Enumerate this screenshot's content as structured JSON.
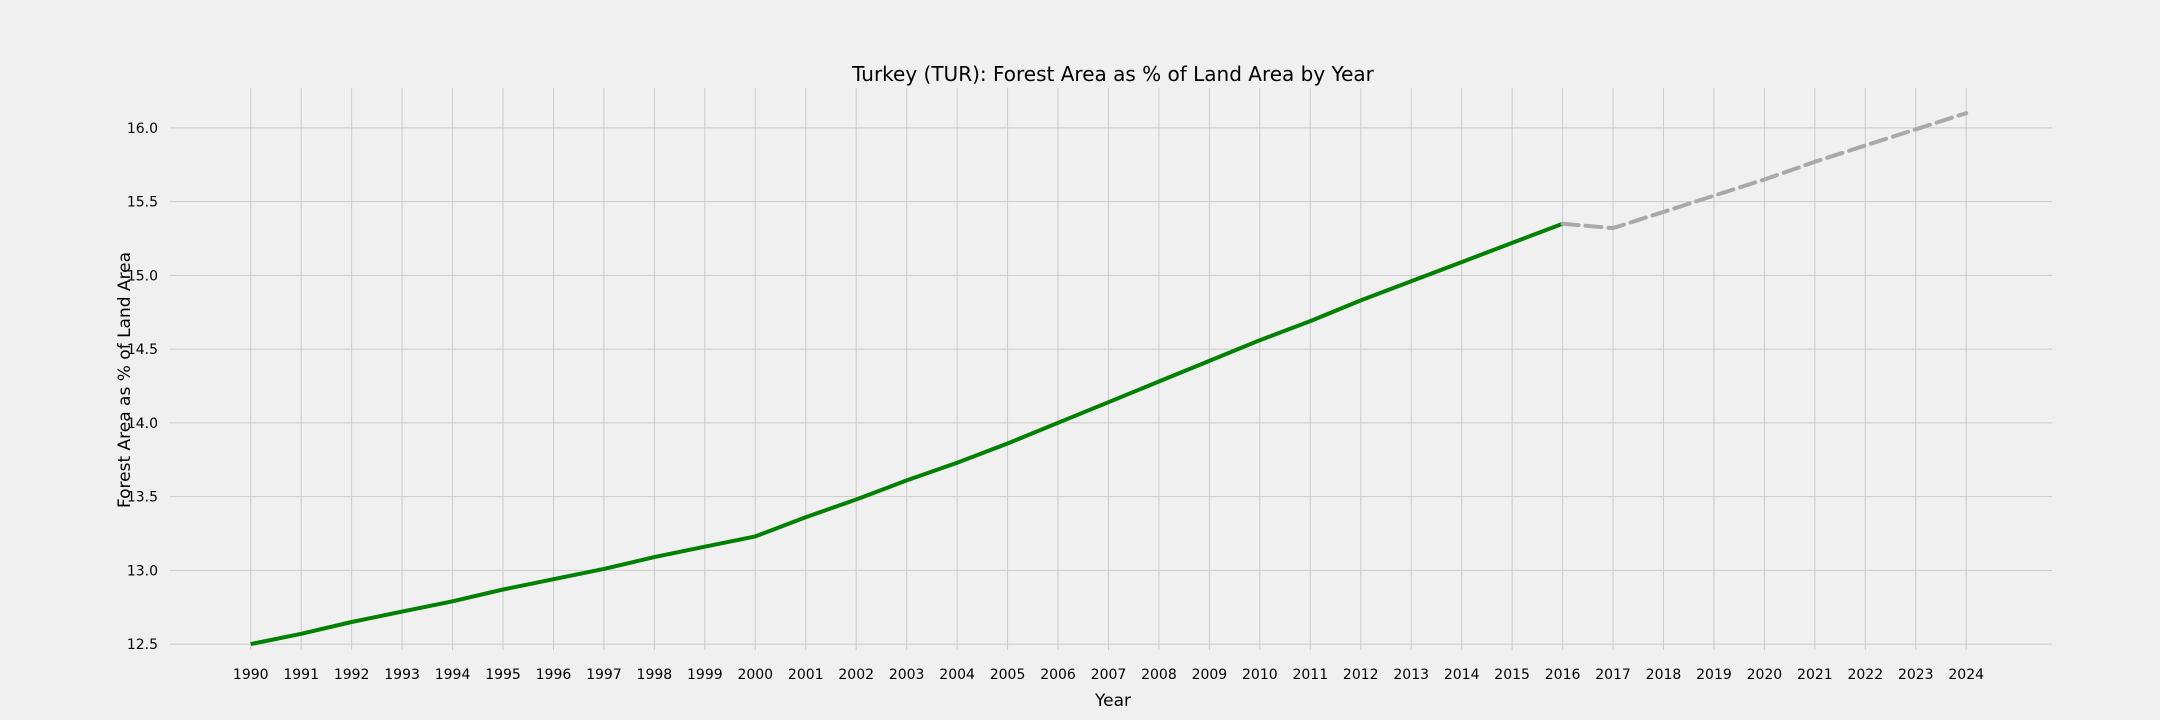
{
  "chart_data": {
    "type": "line",
    "title": "Turkey (TUR): Forest Area as % of Land Area by Year",
    "xlabel": "Year",
    "ylabel": "Forest Area as % of Land Area",
    "x_ticks": [
      "1990",
      "1991",
      "1992",
      "1993",
      "1994",
      "1995",
      "1996",
      "1997",
      "1998",
      "1999",
      "2000",
      "2001",
      "2002",
      "2003",
      "2004",
      "2005",
      "2006",
      "2007",
      "2008",
      "2009",
      "2010",
      "2011",
      "2012",
      "2013",
      "2014",
      "2015",
      "2016",
      "2017",
      "2018",
      "2019",
      "2020",
      "2021",
      "2022",
      "2023",
      "2024"
    ],
    "y_ticks": [
      "12.5",
      "13.0",
      "13.5",
      "14.0",
      "14.5",
      "15.0",
      "15.5",
      "16.0"
    ],
    "xlim": [
      1988.4,
      2025.7
    ],
    "ylim": [
      12.46,
      16.27
    ],
    "grid": true,
    "legend": "none",
    "series": [
      {
        "style": "solid",
        "color": "#008000",
        "x": [
          1990,
          1991,
          1992,
          1993,
          1994,
          1995,
          1996,
          1997,
          1998,
          1999,
          2000,
          2001,
          2002,
          2003,
          2004,
          2005,
          2006,
          2007,
          2008,
          2009,
          2010,
          2011,
          2012,
          2013,
          2014,
          2015,
          2016
        ],
        "y": [
          12.5,
          12.57,
          12.65,
          12.72,
          12.79,
          12.87,
          12.94,
          13.01,
          13.09,
          13.16,
          13.23,
          13.36,
          13.48,
          13.61,
          13.73,
          13.86,
          14.0,
          14.14,
          14.28,
          14.42,
          14.56,
          14.69,
          14.83,
          14.96,
          15.09,
          15.22,
          15.35
        ]
      },
      {
        "style": "dashed",
        "color": "#a9a9a9",
        "x": [
          2016,
          2017,
          2018,
          2019,
          2020,
          2021,
          2022,
          2023,
          2024
        ],
        "y": [
          15.35,
          15.32,
          15.43,
          15.54,
          15.65,
          15.77,
          15.88,
          15.99,
          16.1
        ]
      }
    ]
  }
}
